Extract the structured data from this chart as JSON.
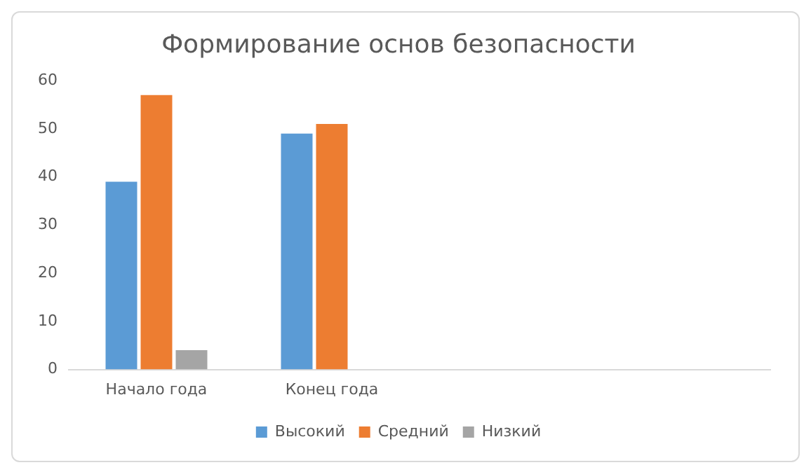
{
  "chart_data": {
    "type": "bar",
    "title": "Формирование основ безопасности",
    "categories": [
      "Начало года",
      "Конец года",
      null,
      null
    ],
    "series": [
      {
        "name": "Высокий",
        "color": "#5b9bd5",
        "values": [
          39,
          49,
          null,
          null
        ]
      },
      {
        "name": "Средний",
        "color": "#ed7d31",
        "values": [
          57,
          51,
          null,
          null
        ]
      },
      {
        "name": "Низкий",
        "color": "#a5a5a5",
        "values": [
          4,
          0,
          null,
          null
        ]
      }
    ],
    "ylim": [
      0,
      60
    ],
    "yticks": [
      0,
      10,
      20,
      30,
      40,
      50,
      60
    ],
    "grid": false,
    "legend": "bottom"
  }
}
